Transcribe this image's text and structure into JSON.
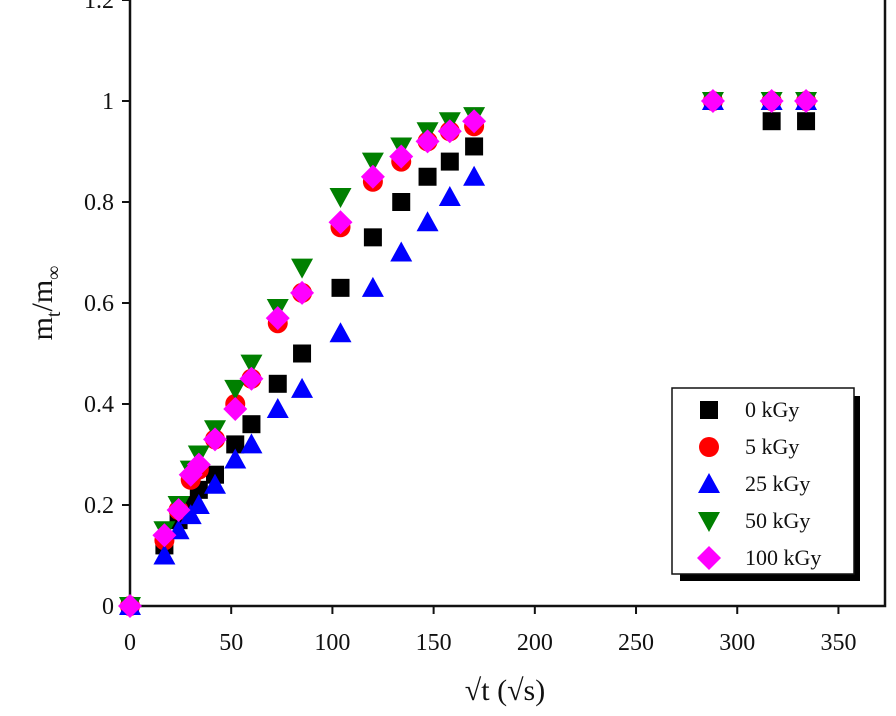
{
  "chart_data": {
    "type": "scatter",
    "title": "",
    "xlabel": "√t (√s)",
    "ylabel_main": "m",
    "ylabel_sub1": "t",
    "ylabel_sep": "/m",
    "ylabel_sub2": "∞",
    "xlim": [
      0,
      373
    ],
    "ylim": [
      0,
      1.2
    ],
    "xticks": [
      0,
      50,
      100,
      150,
      200,
      250,
      300,
      350
    ],
    "yticks": [
      0,
      0.2,
      0.4,
      0.6,
      0.8,
      1,
      1.2
    ],
    "xtick_labels": [
      "0",
      "50",
      "100",
      "150",
      "200",
      "250",
      "300",
      "350"
    ],
    "ytick_labels": [
      "0",
      "0.2",
      "0.4",
      "0.6",
      "0.8",
      "1",
      "1.2"
    ],
    "grid": false,
    "legend_position": "bottom-right",
    "x": [
      0,
      17,
      24,
      30,
      34,
      42,
      52,
      60,
      73,
      85,
      104,
      120,
      134,
      147,
      158,
      170,
      288,
      317,
      334
    ],
    "series": [
      {
        "name": "0 kGy",
        "marker": "square",
        "color": "#000000",
        "values": [
          0,
          0.12,
          0.17,
          0.2,
          0.23,
          0.26,
          0.32,
          0.36,
          0.44,
          0.5,
          0.63,
          0.73,
          0.8,
          0.85,
          0.88,
          0.91,
          1.0,
          0.96,
          0.96
        ]
      },
      {
        "name": "5 kGy",
        "marker": "circle",
        "color": "#ff0000",
        "values": [
          0,
          0.13,
          0.19,
          0.25,
          0.27,
          0.33,
          0.4,
          0.45,
          0.56,
          0.62,
          0.75,
          0.84,
          0.88,
          0.92,
          0.94,
          0.95,
          1.0,
          1.0,
          1.0
        ]
      },
      {
        "name": "25 kGy",
        "marker": "triangle-up",
        "color": "#0000ff",
        "values": [
          0,
          0.1,
          0.15,
          0.18,
          0.2,
          0.24,
          0.29,
          0.32,
          0.39,
          0.43,
          0.54,
          0.63,
          0.7,
          0.76,
          0.81,
          0.85,
          1.0,
          1.0,
          1.0
        ]
      },
      {
        "name": "50 kGy",
        "marker": "triangle-down",
        "color": "#008000",
        "values": [
          0,
          0.15,
          0.2,
          0.27,
          0.3,
          0.35,
          0.43,
          0.48,
          0.59,
          0.67,
          0.81,
          0.88,
          0.91,
          0.94,
          0.96,
          0.97,
          1.0,
          1.0,
          1.0
        ]
      },
      {
        "name": "100 kGy",
        "marker": "diamond",
        "color": "#ff00ff",
        "values": [
          0,
          0.14,
          0.19,
          0.26,
          0.28,
          0.33,
          0.39,
          0.45,
          0.57,
          0.62,
          0.76,
          0.85,
          0.89,
          0.92,
          0.94,
          0.96,
          1.0,
          1.0,
          1.0
        ]
      }
    ]
  }
}
